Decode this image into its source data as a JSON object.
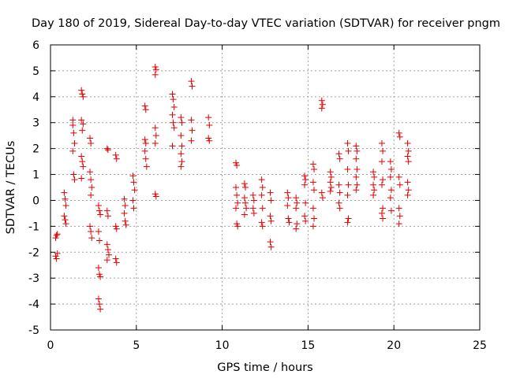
{
  "chart_data": {
    "type": "scatter",
    "title": "Day 180 of 2019, Sidereal Day-to-day VTEC variation (SDTVAR) for receiver pngm",
    "xlabel": "GPS time / hours",
    "ylabel": "SDTVAR / TECUs",
    "xlim": [
      0,
      25
    ],
    "ylim": [
      -5,
      6
    ],
    "xticks": [
      "0",
      "5",
      "10",
      "15",
      "20",
      "25"
    ],
    "yticks": [
      "-5",
      "-4",
      "-3",
      "-2",
      "-1",
      "0",
      "1",
      "2",
      "3",
      "4",
      "5",
      "6"
    ],
    "grid": true,
    "marker": "+",
    "color": "#e00000",
    "series": [
      {
        "name": "pngm",
        "points": [
          [
            0.3,
            -1.45
          ],
          [
            0.35,
            -1.35
          ],
          [
            0.4,
            -1.3
          ],
          [
            0.3,
            -2.15
          ],
          [
            0.35,
            -2.25
          ],
          [
            0.4,
            -2.05
          ],
          [
            0.8,
            -0.6
          ],
          [
            0.85,
            -0.75
          ],
          [
            0.9,
            -0.9
          ],
          [
            0.8,
            0.3
          ],
          [
            0.9,
            -0.2
          ],
          [
            0.85,
            0.05
          ],
          [
            1.3,
            2.9
          ],
          [
            1.35,
            2.6
          ],
          [
            1.4,
            2.2
          ],
          [
            1.3,
            1.9
          ],
          [
            1.35,
            1.0
          ],
          [
            1.4,
            0.8
          ],
          [
            1.3,
            3.1
          ],
          [
            1.8,
            4.25
          ],
          [
            1.85,
            4.1
          ],
          [
            1.9,
            4.0
          ],
          [
            1.8,
            3.1
          ],
          [
            1.9,
            2.95
          ],
          [
            1.85,
            2.7
          ],
          [
            1.8,
            1.7
          ],
          [
            1.85,
            1.5
          ],
          [
            1.9,
            1.3
          ],
          [
            1.8,
            0.85
          ],
          [
            2.3,
            2.4
          ],
          [
            2.35,
            2.2
          ],
          [
            2.3,
            1.1
          ],
          [
            2.35,
            0.8
          ],
          [
            2.4,
            0.5
          ],
          [
            2.35,
            0.2
          ],
          [
            2.3,
            -1.0
          ],
          [
            2.35,
            -1.2
          ],
          [
            2.4,
            -1.45
          ],
          [
            2.8,
            -0.2
          ],
          [
            2.85,
            -0.4
          ],
          [
            2.9,
            -0.55
          ],
          [
            2.8,
            -1.2
          ],
          [
            2.85,
            -1.55
          ],
          [
            2.8,
            -2.6
          ],
          [
            2.85,
            -2.85
          ],
          [
            2.9,
            -2.95
          ],
          [
            2.8,
            -3.8
          ],
          [
            2.85,
            -4.0
          ],
          [
            2.9,
            -4.2
          ],
          [
            3.3,
            2.0
          ],
          [
            3.35,
            1.95
          ],
          [
            3.3,
            -0.4
          ],
          [
            3.35,
            -0.6
          ],
          [
            3.3,
            -1.7
          ],
          [
            3.35,
            -1.9
          ],
          [
            3.4,
            -2.1
          ],
          [
            3.3,
            -2.3
          ],
          [
            3.8,
            1.75
          ],
          [
            3.85,
            1.6
          ],
          [
            3.8,
            -1.0
          ],
          [
            3.85,
            -1.1
          ],
          [
            3.8,
            -2.25
          ],
          [
            3.85,
            -2.4
          ],
          [
            4.3,
            0.05
          ],
          [
            4.35,
            -0.2
          ],
          [
            4.3,
            -0.5
          ],
          [
            4.35,
            -0.8
          ],
          [
            4.4,
            -0.95
          ],
          [
            4.8,
            0.95
          ],
          [
            4.85,
            0.7
          ],
          [
            4.9,
            0.4
          ],
          [
            4.8,
            0.0
          ],
          [
            4.85,
            -0.3
          ],
          [
            5.5,
            3.65
          ],
          [
            5.55,
            3.5
          ],
          [
            5.5,
            2.35
          ],
          [
            5.55,
            2.2
          ],
          [
            5.5,
            1.9
          ],
          [
            5.55,
            1.6
          ],
          [
            5.6,
            1.3
          ],
          [
            6.1,
            5.15
          ],
          [
            6.15,
            5.05
          ],
          [
            6.1,
            4.85
          ],
          [
            6.1,
            2.8
          ],
          [
            6.15,
            2.5
          ],
          [
            6.1,
            2.2
          ],
          [
            6.1,
            0.25
          ],
          [
            6.15,
            0.15
          ],
          [
            7.1,
            4.1
          ],
          [
            7.15,
            3.9
          ],
          [
            7.2,
            3.6
          ],
          [
            7.1,
            3.3
          ],
          [
            7.15,
            3.0
          ],
          [
            7.2,
            2.8
          ],
          [
            7.1,
            2.1
          ],
          [
            7.6,
            3.2
          ],
          [
            7.65,
            3.0
          ],
          [
            7.6,
            2.5
          ],
          [
            7.65,
            2.1
          ],
          [
            7.6,
            1.8
          ],
          [
            7.65,
            1.5
          ],
          [
            7.6,
            1.3
          ],
          [
            8.2,
            4.6
          ],
          [
            8.25,
            4.4
          ],
          [
            8.2,
            3.1
          ],
          [
            8.25,
            2.7
          ],
          [
            8.2,
            2.3
          ],
          [
            9.2,
            3.2
          ],
          [
            9.25,
            2.9
          ],
          [
            9.2,
            2.4
          ],
          [
            9.25,
            2.3
          ],
          [
            10.8,
            1.45
          ],
          [
            10.85,
            1.35
          ],
          [
            10.8,
            0.5
          ],
          [
            10.85,
            0.2
          ],
          [
            10.9,
            -0.1
          ],
          [
            10.8,
            -0.3
          ],
          [
            10.85,
            -0.9
          ],
          [
            10.9,
            -1.0
          ],
          [
            11.3,
            0.65
          ],
          [
            11.35,
            0.5
          ],
          [
            11.3,
            0.1
          ],
          [
            11.35,
            -0.1
          ],
          [
            11.4,
            -0.3
          ],
          [
            11.3,
            -0.55
          ],
          [
            11.8,
            0.2
          ],
          [
            11.85,
            0.0
          ],
          [
            11.8,
            -0.3
          ],
          [
            11.85,
            -0.5
          ],
          [
            12.3,
            0.8
          ],
          [
            12.35,
            0.5
          ],
          [
            12.3,
            0.2
          ],
          [
            12.35,
            -0.3
          ],
          [
            12.3,
            -0.85
          ],
          [
            12.35,
            -1.0
          ],
          [
            12.8,
            0.3
          ],
          [
            12.85,
            0.0
          ],
          [
            12.8,
            -0.6
          ],
          [
            12.85,
            -0.8
          ],
          [
            12.8,
            -1.6
          ],
          [
            12.85,
            -1.8
          ],
          [
            13.8,
            0.3
          ],
          [
            13.85,
            0.1
          ],
          [
            13.8,
            -0.2
          ],
          [
            13.85,
            -0.7
          ],
          [
            13.9,
            -0.85
          ],
          [
            14.3,
            0.1
          ],
          [
            14.35,
            -0.1
          ],
          [
            14.3,
            -0.3
          ],
          [
            14.35,
            -0.9
          ],
          [
            14.3,
            -1.1
          ],
          [
            14.8,
            0.95
          ],
          [
            14.85,
            0.8
          ],
          [
            14.8,
            0.6
          ],
          [
            14.85,
            -0.1
          ],
          [
            14.8,
            -0.6
          ],
          [
            14.85,
            -0.8
          ],
          [
            15.3,
            1.4
          ],
          [
            15.35,
            1.2
          ],
          [
            15.3,
            0.7
          ],
          [
            15.35,
            0.4
          ],
          [
            15.3,
            -0.3
          ],
          [
            15.35,
            -0.7
          ],
          [
            15.3,
            -1.0
          ],
          [
            15.8,
            3.85
          ],
          [
            15.85,
            3.7
          ],
          [
            15.8,
            3.55
          ],
          [
            15.8,
            0.3
          ],
          [
            15.85,
            0.1
          ],
          [
            16.3,
            1.1
          ],
          [
            16.35,
            0.9
          ],
          [
            16.3,
            0.7
          ],
          [
            16.35,
            0.5
          ],
          [
            16.3,
            0.35
          ],
          [
            16.8,
            1.8
          ],
          [
            16.85,
            1.6
          ],
          [
            16.8,
            0.6
          ],
          [
            16.85,
            0.3
          ],
          [
            16.8,
            -0.1
          ],
          [
            16.85,
            -0.3
          ],
          [
            17.3,
            2.2
          ],
          [
            17.35,
            1.9
          ],
          [
            17.3,
            1.2
          ],
          [
            17.35,
            0.6
          ],
          [
            17.3,
            0.2
          ],
          [
            17.35,
            -0.7
          ],
          [
            17.3,
            -0.85
          ],
          [
            17.8,
            2.1
          ],
          [
            17.85,
            1.9
          ],
          [
            17.8,
            1.6
          ],
          [
            17.85,
            1.2
          ],
          [
            17.8,
            0.9
          ],
          [
            17.85,
            0.6
          ],
          [
            17.8,
            0.4
          ],
          [
            18.8,
            1.1
          ],
          [
            18.85,
            0.9
          ],
          [
            18.8,
            0.6
          ],
          [
            18.85,
            0.4
          ],
          [
            18.8,
            0.2
          ],
          [
            19.3,
            2.2
          ],
          [
            19.35,
            1.9
          ],
          [
            19.3,
            1.5
          ],
          [
            19.35,
            0.8
          ],
          [
            19.3,
            0.6
          ],
          [
            19.35,
            -0.3
          ],
          [
            19.3,
            -0.5
          ],
          [
            19.35,
            -0.7
          ],
          [
            19.8,
            1.5
          ],
          [
            19.85,
            1.2
          ],
          [
            19.8,
            0.9
          ],
          [
            19.85,
            0.4
          ],
          [
            19.8,
            0.1
          ],
          [
            19.85,
            -0.4
          ],
          [
            20.3,
            2.6
          ],
          [
            20.35,
            2.45
          ],
          [
            20.3,
            0.9
          ],
          [
            20.35,
            0.6
          ],
          [
            20.3,
            -0.3
          ],
          [
            20.35,
            -0.6
          ],
          [
            20.3,
            -0.9
          ],
          [
            20.8,
            2.2
          ],
          [
            20.85,
            1.9
          ],
          [
            20.8,
            1.7
          ],
          [
            20.85,
            1.5
          ],
          [
            20.8,
            0.7
          ],
          [
            20.85,
            0.4
          ],
          [
            20.8,
            0.2
          ]
        ]
      }
    ]
  }
}
